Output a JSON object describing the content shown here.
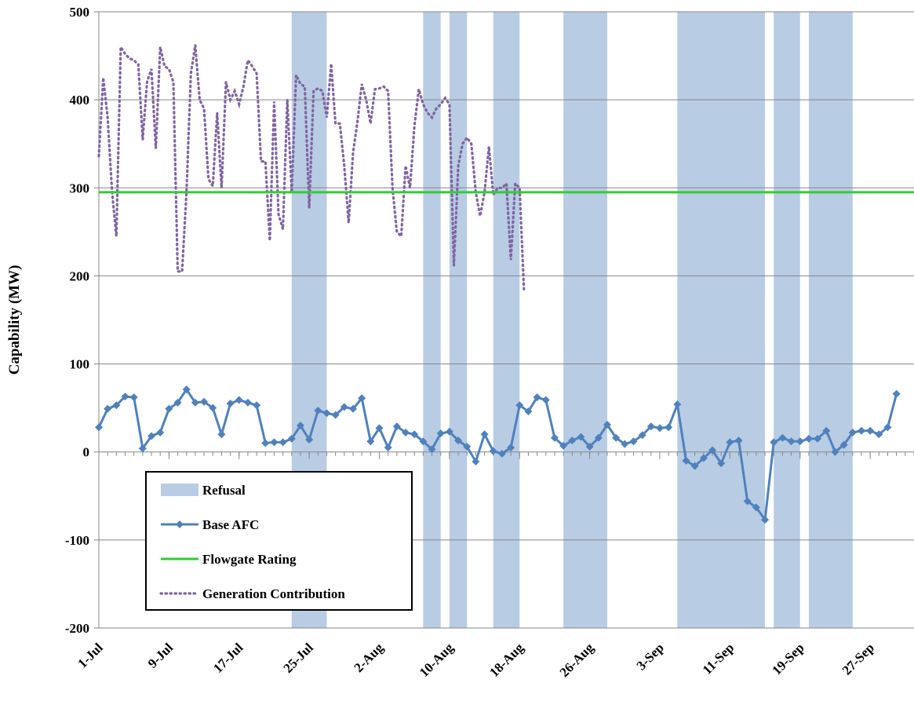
{
  "chart_data": {
    "type": "line",
    "title": "",
    "xlabel": "",
    "ylabel": "Capability (MW)",
    "ylim": [
      -200,
      500
    ],
    "yticks": [
      -200,
      -100,
      0,
      100,
      200,
      300,
      400,
      500
    ],
    "ytick_labels": [
      "-200",
      "-100",
      "0",
      "100",
      "200",
      "300",
      "400",
      "500"
    ],
    "x_start": "2016-07-01",
    "x_end": "2016-10-02",
    "xtick_dates": [
      "2016-07-01",
      "2016-07-09",
      "2016-07-17",
      "2016-07-25",
      "2016-08-02",
      "2016-08-10",
      "2016-08-18",
      "2016-08-26",
      "2016-09-03",
      "2016-09-11",
      "2016-09-19",
      "2016-09-27"
    ],
    "xtick_labels": [
      "1-Jul",
      "9-Jul",
      "17-Jul",
      "25-Jul",
      "2-Aug",
      "10-Aug",
      "18-Aug",
      "26-Aug",
      "3-Sep",
      "11-Sep",
      "19-Sep",
      "27-Sep"
    ],
    "grid": "horizontal",
    "legend_position": "bottom-left",
    "legend": [
      {
        "label": "Refusal",
        "kind": "patch",
        "color": "#b8cce4"
      },
      {
        "label": "Base AFC",
        "kind": "line-marker",
        "color": "#4f81bd"
      },
      {
        "label": "Flowgate Rating",
        "kind": "line",
        "color": "#33cc33"
      },
      {
        "label": "Generation Contribution",
        "kind": "dotted-line",
        "color": "#8064a2"
      }
    ],
    "refusal_periods": [
      {
        "start": "2016-07-23",
        "end": "2016-07-27"
      },
      {
        "start": "2016-08-07",
        "end": "2016-08-09"
      },
      {
        "start": "2016-08-10",
        "end": "2016-08-12"
      },
      {
        "start": "2016-08-15",
        "end": "2016-08-18"
      },
      {
        "start": "2016-08-23",
        "end": "2016-08-28"
      },
      {
        "start": "2016-09-05",
        "end": "2016-09-15"
      },
      {
        "start": "2016-09-16",
        "end": "2016-09-19"
      },
      {
        "start": "2016-09-20",
        "end": "2016-09-25"
      }
    ],
    "series": [
      {
        "name": "Base AFC",
        "color": "#4f81bd",
        "start_date": "2016-07-01",
        "step_days": 1,
        "values": [
          28,
          49,
          53,
          63,
          62,
          4,
          18,
          22,
          49,
          56,
          71,
          56,
          57,
          50,
          20,
          55,
          59,
          56,
          53,
          10,
          11,
          11,
          15,
          30,
          14,
          47,
          44,
          42,
          51,
          49,
          61,
          12,
          27,
          5,
          29,
          22,
          20,
          12,
          3,
          21,
          23,
          13,
          6,
          -11,
          20,
          1,
          -2,
          5,
          53,
          46,
          62,
          59,
          16,
          7,
          13,
          17,
          6,
          16,
          31,
          16,
          9,
          12,
          19,
          29,
          27,
          28,
          54,
          -10,
          -16,
          -7,
          2,
          -13,
          11,
          13,
          -56,
          -63,
          -77,
          11,
          16,
          12,
          12,
          15,
          15,
          24,
          0,
          8,
          22,
          24,
          24,
          20,
          28,
          66
        ]
      },
      {
        "name": "Flowgate Rating",
        "color": "#33cc33",
        "constant": 295
      },
      {
        "name": "Generation Contribution",
        "color": "#8064a2",
        "start_date": "2016-07-01",
        "step_days": 0.5,
        "values": [
          336,
          425,
          380,
          296,
          245,
          460,
          452,
          447,
          445,
          440,
          355,
          420,
          435,
          345,
          460,
          438,
          435,
          420,
          205,
          205,
          295,
          430,
          462,
          400,
          390,
          310,
          302,
          385,
          300,
          420,
          400,
          410,
          395,
          415,
          445,
          438,
          430,
          330,
          330,
          240,
          398,
          270,
          253,
          400,
          295,
          428,
          418,
          415,
          277,
          410,
          413,
          410,
          380,
          441,
          373,
          373,
          325,
          260,
          340,
          375,
          418,
          400,
          373,
          412,
          413,
          415,
          410,
          300,
          250,
          245,
          325,
          300,
          370,
          412,
          395,
          385,
          380,
          390,
          395,
          402,
          395,
          212,
          325,
          350,
          357,
          350,
          295,
          268,
          295,
          347,
          292,
          300,
          300,
          305,
          218,
          305,
          300,
          185
        ]
      }
    ]
  }
}
